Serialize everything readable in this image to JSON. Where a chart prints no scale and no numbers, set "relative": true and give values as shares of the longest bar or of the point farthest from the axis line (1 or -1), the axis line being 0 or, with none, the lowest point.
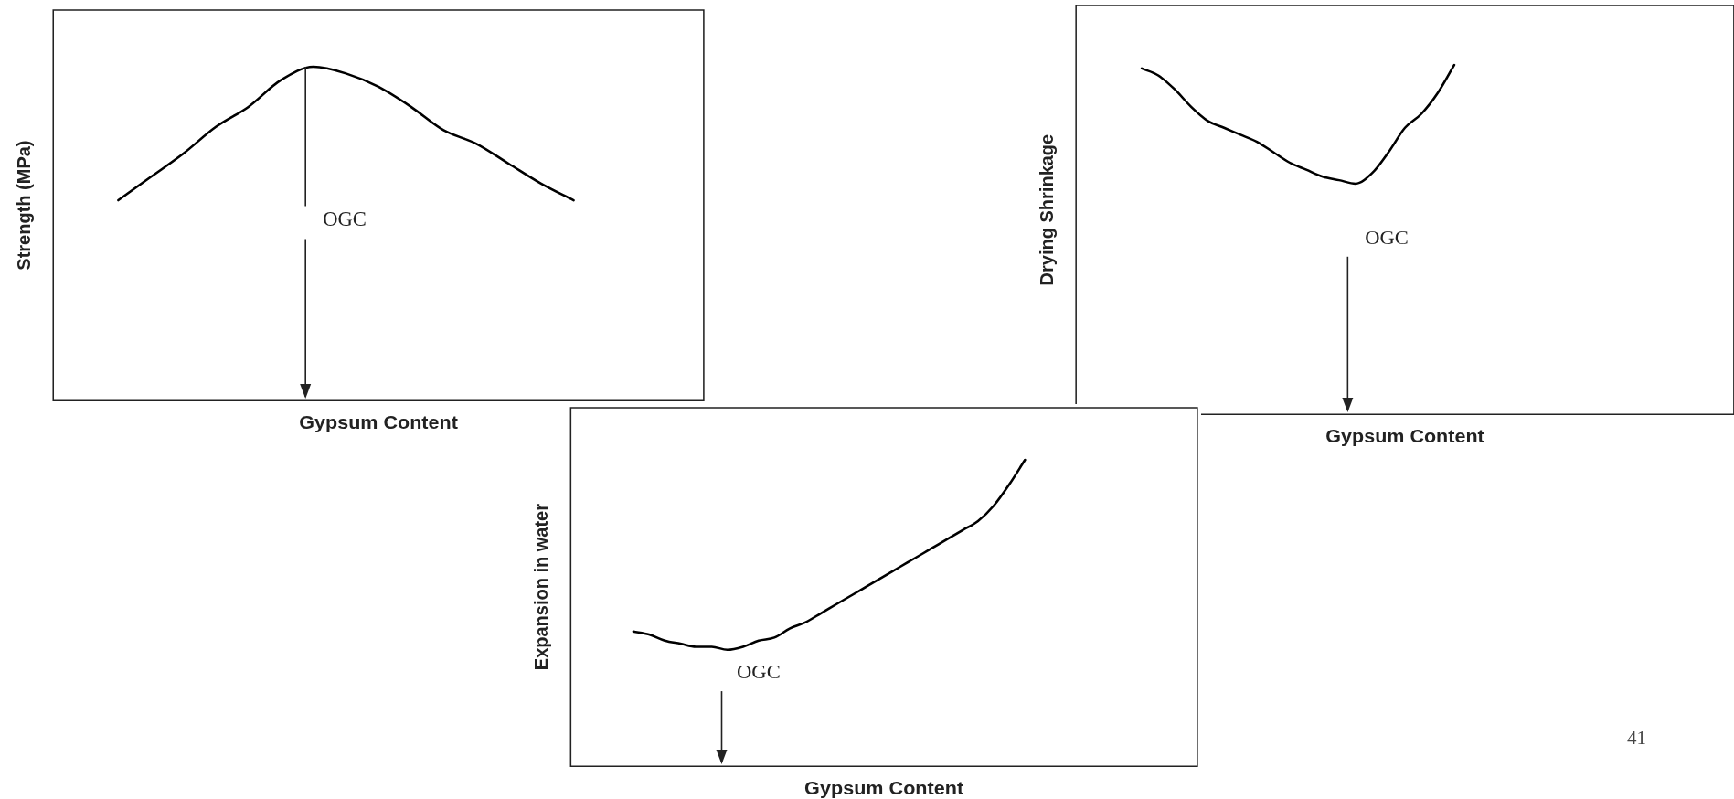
{
  "chart_data": [
    {
      "type": "line",
      "relative": true,
      "marker": "none",
      "ylabel": "Strength (MPa)",
      "xlabel": "Gypsum Content",
      "categories": [
        null,
        null,
        null,
        null,
        null,
        null,
        null,
        null,
        null,
        null,
        null,
        null,
        null,
        null,
        null,
        null,
        null,
        null,
        null,
        null,
        null
      ],
      "series": [
        {
          "color": "#000000",
          "values": [
            null,
            null,
            0.6,
            0.67,
            0.74,
            0.82,
            0.88,
            0.96,
            1.0,
            0.98,
            0.94,
            0.88,
            0.81,
            0.77,
            0.71,
            0.65,
            0.6,
            null,
            null,
            null,
            null
          ]
        }
      ],
      "annotations": [
        "OGC"
      ]
    },
    {
      "type": "line",
      "relative": true,
      "marker": "none",
      "ylabel": "Drying Shrinkage",
      "xlabel": "Gypsum Content",
      "categories": [
        null,
        null,
        null,
        null,
        null,
        null,
        null,
        null,
        null,
        null,
        null,
        null,
        null,
        null,
        null,
        null,
        null,
        null,
        null,
        null,
        null,
        null,
        null,
        null,
        null,
        null,
        null,
        null,
        null,
        null,
        null,
        null,
        null,
        null,
        null,
        null,
        null,
        null,
        null,
        null,
        null
      ],
      "series": [
        {
          "color": "#000000",
          "values": [
            null,
            null,
            null,
            null,
            0.99,
            0.97,
            0.93,
            0.88,
            0.84,
            0.82,
            0.8,
            0.78,
            0.75,
            0.72,
            0.7,
            0.68,
            0.67,
            0.66,
            0.69,
            0.75,
            0.82,
            0.86,
            0.92,
            1.0,
            null,
            null,
            null,
            null,
            null,
            null,
            null,
            null,
            null,
            null,
            null,
            null,
            null,
            null,
            null,
            null,
            null
          ]
        }
      ],
      "annotations": [
        "OGC"
      ]
    },
    {
      "type": "line",
      "relative": true,
      "marker": "none",
      "ylabel": "Expansion in water",
      "xlabel": "Gypsum Content",
      "categories": [
        null,
        null,
        null,
        null,
        null,
        null,
        null,
        null,
        null,
        null,
        null,
        null,
        null,
        null,
        null,
        null,
        null,
        null,
        null,
        null,
        null,
        null,
        null,
        null,
        null,
        null,
        null,
        null,
        null,
        null,
        null,
        null,
        null,
        null,
        null,
        null,
        null,
        null,
        null,
        null,
        null
      ],
      "series": [
        {
          "color": "#000000",
          "values": [
            null,
            null,
            null,
            null,
            0.44,
            0.43,
            0.41,
            0.4,
            0.39,
            0.39,
            0.38,
            0.39,
            0.41,
            0.42,
            0.45,
            0.47,
            0.5,
            0.53,
            0.56,
            0.59,
            0.62,
            0.65,
            0.68,
            0.71,
            0.74,
            0.77,
            0.8,
            0.85,
            0.92,
            1.0,
            null,
            null,
            null,
            null,
            null,
            null,
            null,
            null,
            null,
            null,
            null
          ]
        }
      ],
      "annotations": [
        "OGC",
        "41"
      ]
    }
  ]
}
